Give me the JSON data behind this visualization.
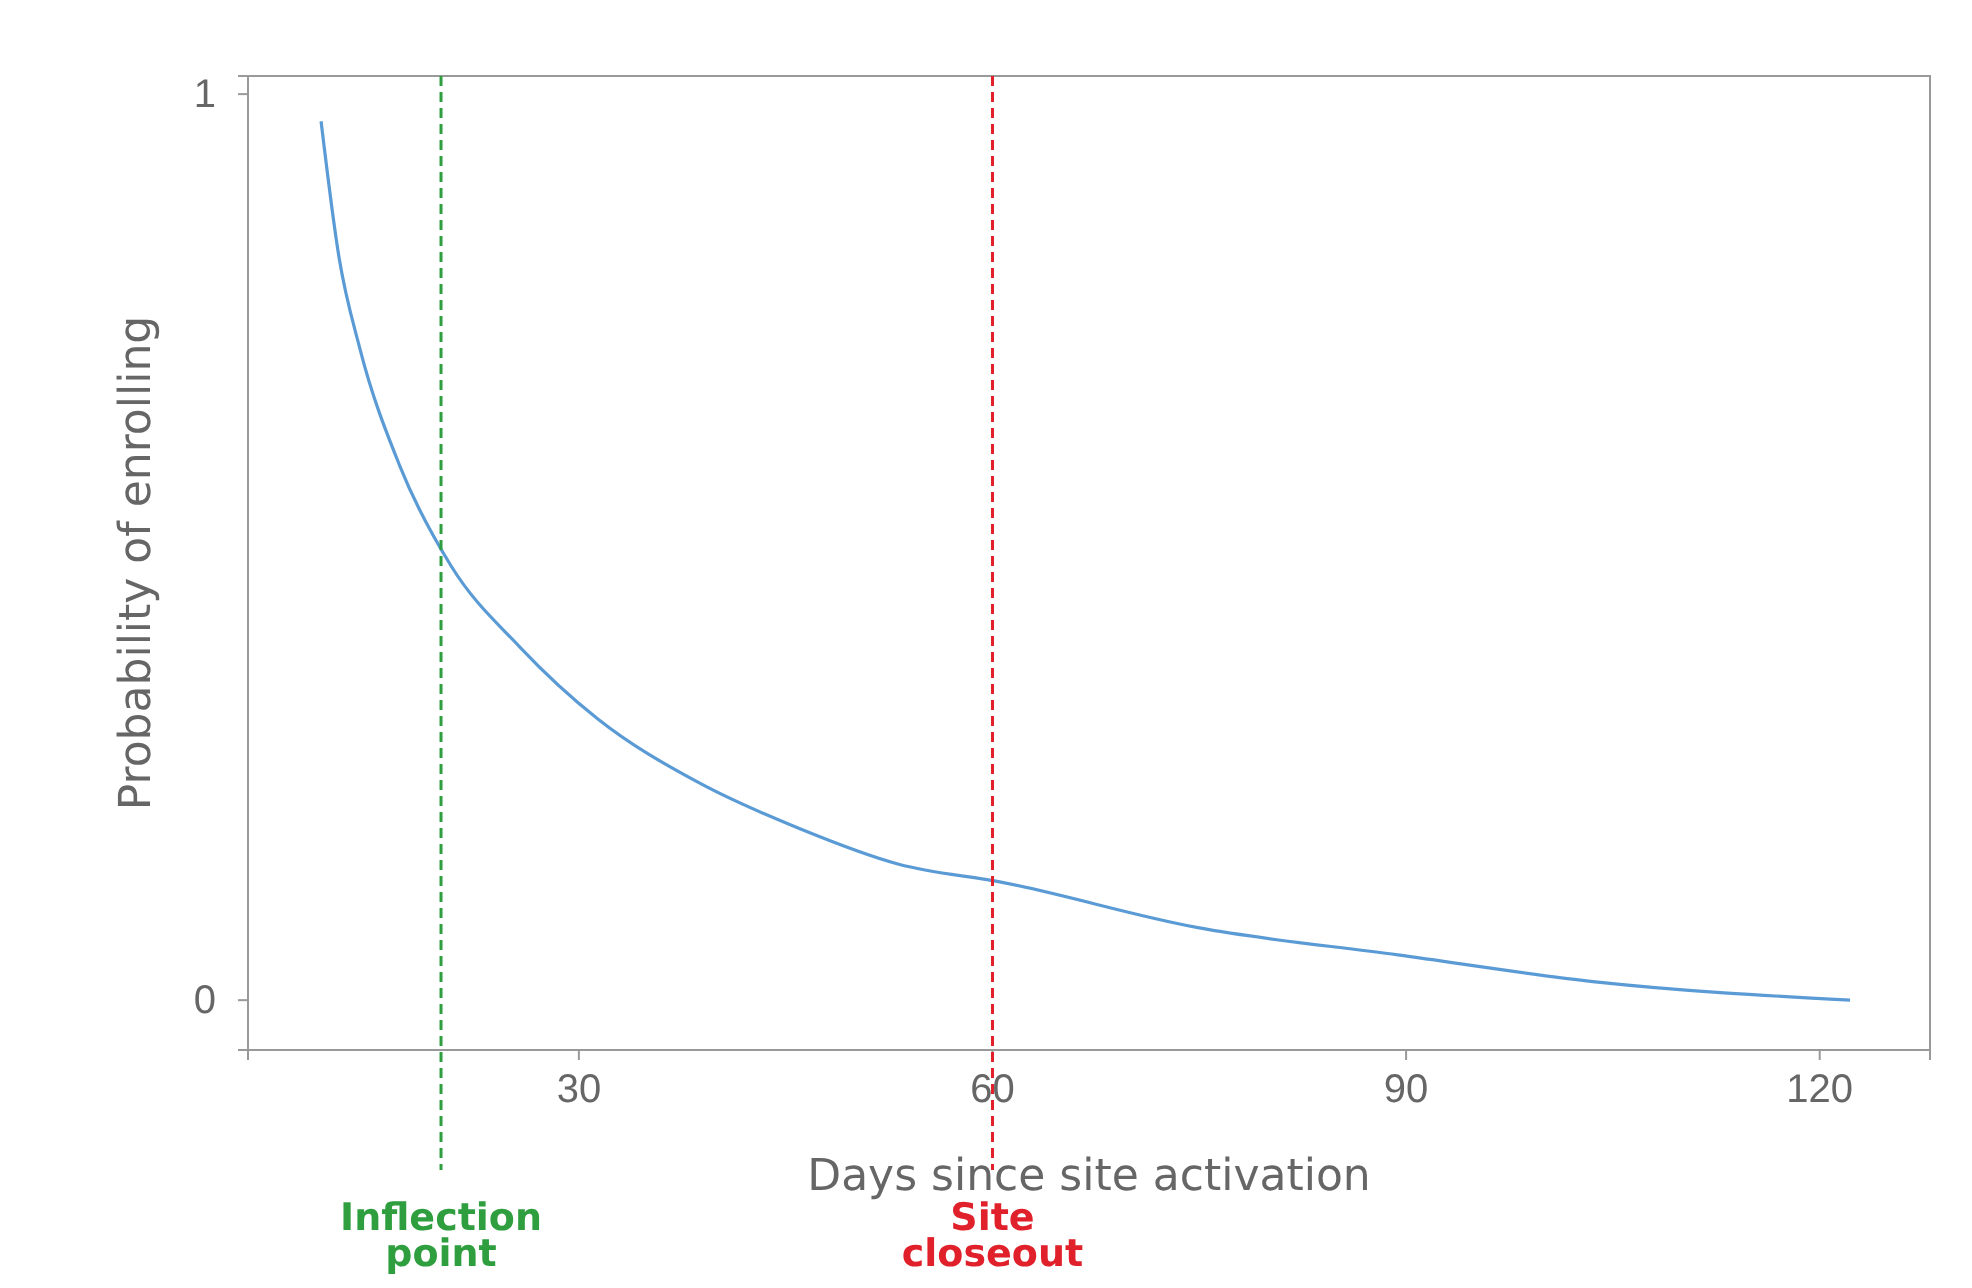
{
  "chart_data": {
    "type": "line",
    "xlabel": "Days since site activation",
    "ylabel": "Probability of enrolling",
    "series": [
      {
        "color": "#5b9bd5",
        "x": [
          11.3,
          12.6,
          14.1,
          17,
          20.7,
          25.7,
          31.4,
          38.7,
          45.9,
          53.2,
          60.7,
          74.9,
          89.4,
          103.9,
          122.2
        ],
        "values": [
          0.97,
          0.82,
          0.72,
          0.59,
          0.48,
          0.39,
          0.31,
          0.24,
          0.19,
          0.15,
          0.13,
          0.08,
          0.05,
          0.02,
          0
        ]
      }
    ],
    "xlim": [
      6,
      128
    ],
    "xticks": [
      30,
      60,
      90,
      120
    ],
    "ylim": [
      -0.055,
      1.02
    ],
    "yticks": [
      0,
      1
    ],
    "grid": false,
    "marker": "none",
    "line_style": "solid",
    "ref_lines": [
      {
        "axis": "x",
        "value": 20,
        "label": "Inflection point",
        "color": "#2e9e3e",
        "line_style": "dashed"
      },
      {
        "axis": "x",
        "value": 60,
        "label": "Site closeout",
        "color": "#e0202a",
        "line_style": "dashed"
      }
    ]
  }
}
